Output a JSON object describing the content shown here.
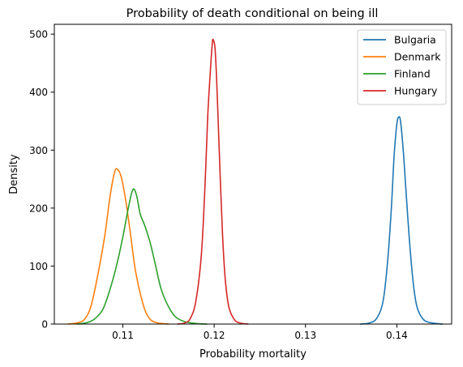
{
  "chart_data": {
    "type": "line",
    "title": "Probability of death conditional on being ill",
    "xlabel": "Probability mortality",
    "ylabel": "Density",
    "xlim": [
      0.1025,
      0.146
    ],
    "ylim": [
      0,
      517
    ],
    "xticks": [
      0.11,
      0.12,
      0.13,
      0.14
    ],
    "xtick_labels": [
      "0.11",
      "0.12",
      "0.13",
      "0.14"
    ],
    "yticks": [
      0,
      100,
      200,
      300,
      400,
      500
    ],
    "ytick_labels": [
      "0",
      "100",
      "200",
      "300",
      "400",
      "500"
    ],
    "grid": false,
    "legend_position": "top-right",
    "series": [
      {
        "name": "Bulgaria",
        "color": "#1f77b4",
        "points": [
          [
            0.136,
            0
          ],
          [
            0.137,
            2
          ],
          [
            0.1378,
            10
          ],
          [
            0.1385,
            40
          ],
          [
            0.139,
            110
          ],
          [
            0.1394,
            200
          ],
          [
            0.1397,
            290
          ],
          [
            0.14,
            345
          ],
          [
            0.1402,
            357
          ],
          [
            0.1404,
            350
          ],
          [
            0.1407,
            300
          ],
          [
            0.141,
            230
          ],
          [
            0.1414,
            140
          ],
          [
            0.1418,
            70
          ],
          [
            0.1422,
            30
          ],
          [
            0.1428,
            10
          ],
          [
            0.1435,
            3
          ],
          [
            0.145,
            0
          ]
        ]
      },
      {
        "name": "Denmark",
        "color": "#ff7f0e",
        "points": [
          [
            0.104,
            0
          ],
          [
            0.105,
            2
          ],
          [
            0.1058,
            8
          ],
          [
            0.1065,
            30
          ],
          [
            0.1072,
            80
          ],
          [
            0.108,
            150
          ],
          [
            0.1086,
            220
          ],
          [
            0.1091,
            262
          ],
          [
            0.1094,
            267
          ],
          [
            0.1098,
            255
          ],
          [
            0.1103,
            215
          ],
          [
            0.1108,
            160
          ],
          [
            0.1113,
            100
          ],
          [
            0.1118,
            60
          ],
          [
            0.1124,
            25
          ],
          [
            0.113,
            8
          ],
          [
            0.1138,
            2
          ],
          [
            0.115,
            0
          ]
        ]
      },
      {
        "name": "Finland",
        "color": "#2ca02c",
        "points": [
          [
            0.105,
            0
          ],
          [
            0.1062,
            3
          ],
          [
            0.107,
            10
          ],
          [
            0.1078,
            25
          ],
          [
            0.1085,
            55
          ],
          [
            0.1093,
            100
          ],
          [
            0.11,
            150
          ],
          [
            0.1106,
            200
          ],
          [
            0.1111,
            232
          ],
          [
            0.1115,
            222
          ],
          [
            0.1119,
            190
          ],
          [
            0.1124,
            170
          ],
          [
            0.113,
            140
          ],
          [
            0.1136,
            100
          ],
          [
            0.1142,
            60
          ],
          [
            0.115,
            30
          ],
          [
            0.1158,
            12
          ],
          [
            0.1168,
            4
          ],
          [
            0.118,
            1
          ],
          [
            0.1192,
            0
          ]
        ]
      },
      {
        "name": "Hungary",
        "color": "#d62728",
        "points": [
          [
            0.116,
            0
          ],
          [
            0.1168,
            2
          ],
          [
            0.1174,
            10
          ],
          [
            0.118,
            40
          ],
          [
            0.1186,
            120
          ],
          [
            0.119,
            240
          ],
          [
            0.1193,
            360
          ],
          [
            0.1196,
            440
          ],
          [
            0.1198,
            485
          ],
          [
            0.1199,
            490
          ],
          [
            0.1201,
            475
          ],
          [
            0.1203,
            410
          ],
          [
            0.1206,
            280
          ],
          [
            0.1209,
            160
          ],
          [
            0.1212,
            80
          ],
          [
            0.1216,
            30
          ],
          [
            0.1222,
            8
          ],
          [
            0.1228,
            2
          ],
          [
            0.1237,
            0
          ]
        ]
      }
    ]
  }
}
